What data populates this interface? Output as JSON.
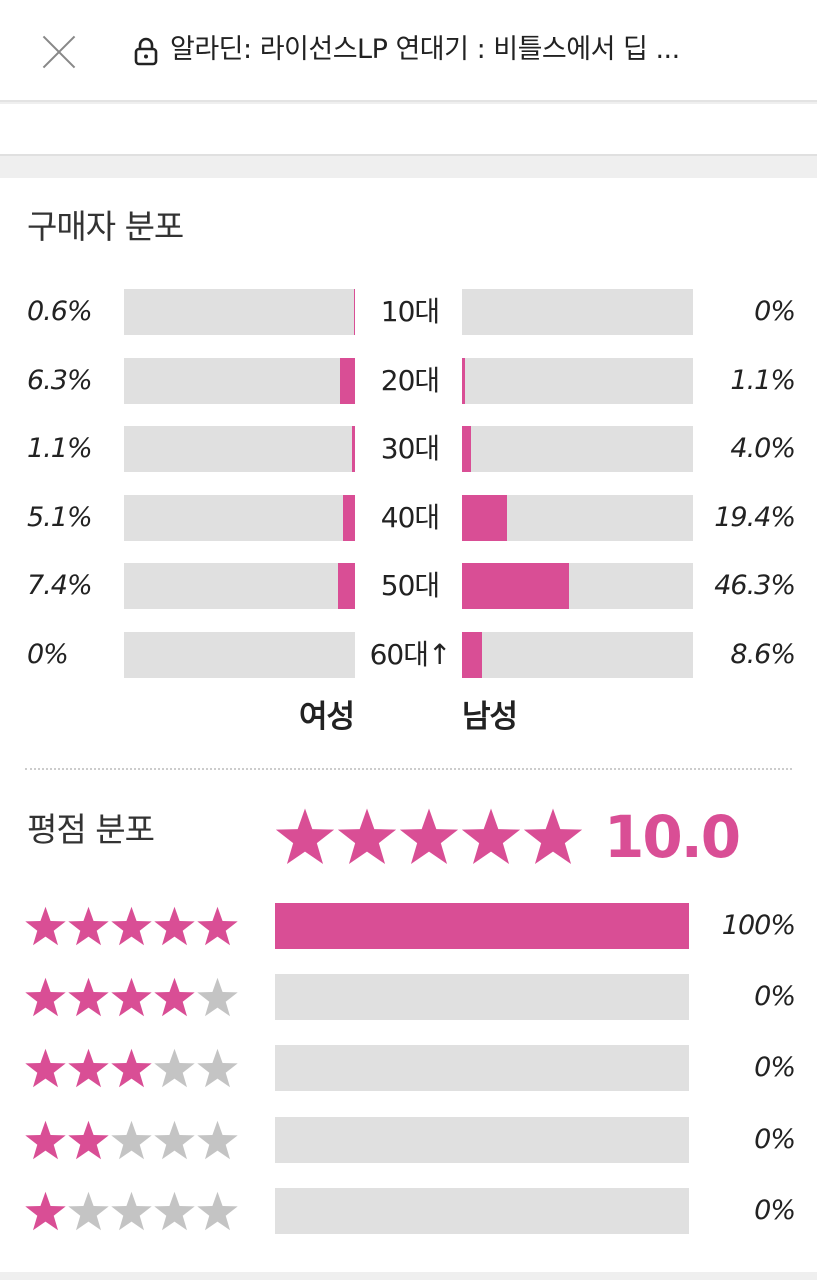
{
  "header": {
    "title": "알라딘: 라이선스LP 연대기 : 비틀스에서 딥 ...",
    "close_icon": "close-icon",
    "lock_icon": "lock-icon"
  },
  "colors": {
    "accent": "#d94e95",
    "track": "#e0e0e0",
    "star_empty": "#c4c4c4"
  },
  "buyer_distribution": {
    "title": "구매자 분포",
    "female_label": "여성",
    "male_label": "남성",
    "rows": [
      {
        "age": "10대",
        "female": "0.6%",
        "male": "0%",
        "female_value": 0.6,
        "male_value": 0
      },
      {
        "age": "20대",
        "female": "6.3%",
        "male": "1.1%",
        "female_value": 6.3,
        "male_value": 1.1
      },
      {
        "age": "30대",
        "female": "1.1%",
        "male": "4.0%",
        "female_value": 1.1,
        "male_value": 4.0
      },
      {
        "age": "40대",
        "female": "5.1%",
        "male": "19.4%",
        "female_value": 5.1,
        "male_value": 19.4
      },
      {
        "age": "50대",
        "female": "7.4%",
        "male": "46.3%",
        "female_value": 7.4,
        "male_value": 46.3
      },
      {
        "age": "60대↑",
        "female": "0%",
        "male": "8.6%",
        "female_value": 0,
        "male_value": 8.6
      }
    ]
  },
  "rating_distribution": {
    "title": "평점 분포",
    "overall_stars": 5,
    "score": "10.0",
    "rows": [
      {
        "stars": 5,
        "percent": "100%",
        "value": 100
      },
      {
        "stars": 4,
        "percent": "0%",
        "value": 0
      },
      {
        "stars": 3,
        "percent": "0%",
        "value": 0
      },
      {
        "stars": 2,
        "percent": "0%",
        "value": 0
      },
      {
        "stars": 1,
        "percent": "0%",
        "value": 0
      }
    ]
  }
}
